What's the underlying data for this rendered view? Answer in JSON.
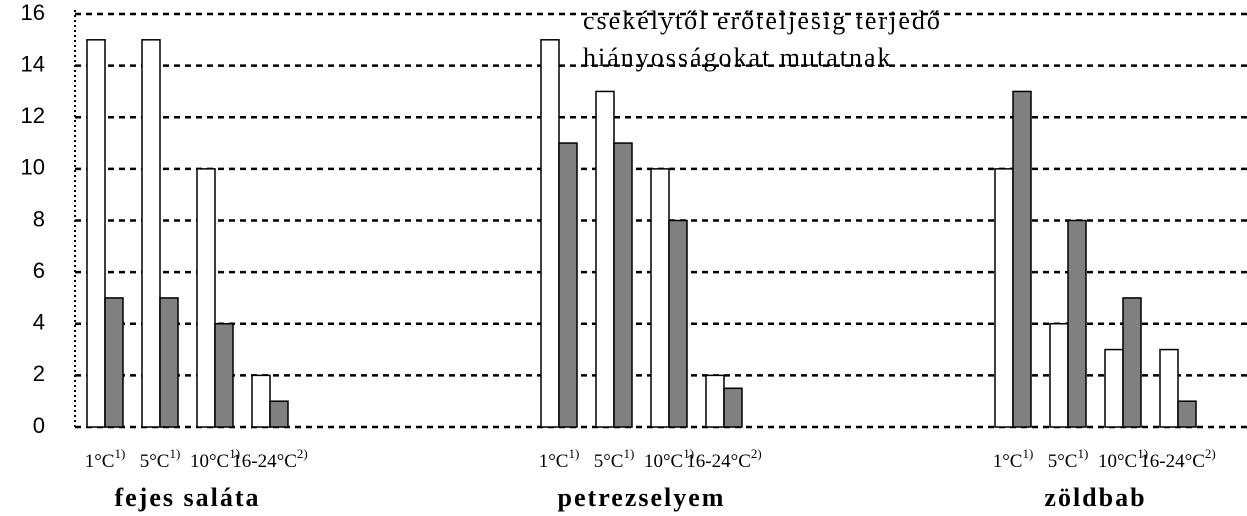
{
  "chart_data": {
    "type": "grouped_bar",
    "annotations": [
      "csekélytől erőteljesig terjedő",
      "hiányosságokat mutatnak"
    ],
    "ylim": [
      0,
      16
    ],
    "yticks": [
      0,
      2,
      4,
      6,
      8,
      10,
      12,
      14,
      16
    ],
    "grid": true,
    "groups": [
      {
        "name": "fejes saláta",
        "categories": [
          "1°C",
          "5°C",
          "10°C",
          "16-24°C"
        ],
        "notes": [
          "1)",
          "1)",
          "1)",
          "2)"
        ],
        "series": [
          {
            "color": "#ffffff",
            "values": [
              15,
              15,
              10,
              2
            ]
          },
          {
            "color": "#808080",
            "values": [
              5,
              5,
              4,
              1
            ]
          }
        ]
      },
      {
        "name": "petrezselyem",
        "categories": [
          "1°C",
          "5°C",
          "10°C",
          "16-24°C"
        ],
        "notes": [
          "1)",
          "1)",
          "1)",
          "2)"
        ],
        "series": [
          {
            "color": "#ffffff",
            "values": [
              15,
              13,
              10,
              2
            ]
          },
          {
            "color": "#808080",
            "values": [
              11,
              11,
              8,
              1.5
            ]
          }
        ]
      },
      {
        "name": "zöldbab",
        "categories": [
          "1°C",
          "5°C",
          "10°C",
          "16-24°C"
        ],
        "notes": [
          "1)",
          "1)",
          "1)",
          "2)"
        ],
        "series": [
          {
            "color": "#ffffff",
            "values": [
              10,
              4,
              3,
              3
            ]
          },
          {
            "color": "#808080",
            "values": [
              13,
              8,
              5,
              1
            ]
          }
        ]
      }
    ]
  }
}
